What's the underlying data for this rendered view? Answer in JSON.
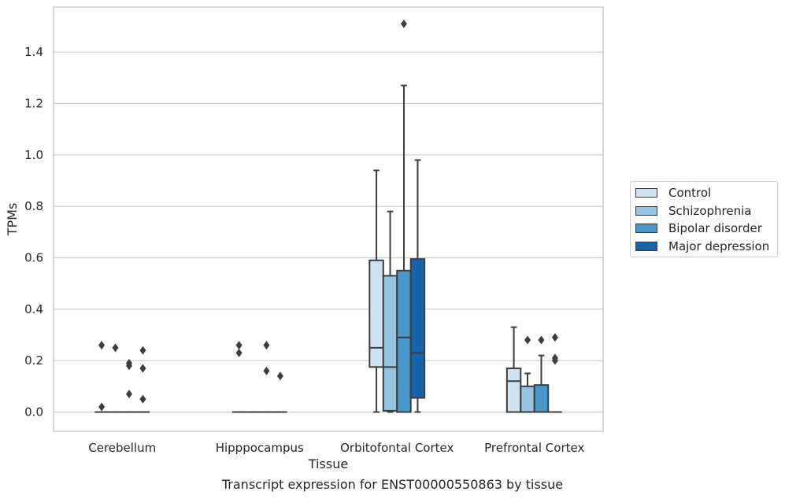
{
  "chart_data": {
    "type": "box",
    "title": "",
    "caption": "Transcript expression for ENST00000550863 by tissue",
    "xlabel": "Tissue",
    "ylabel": "TPMs",
    "ylim": [
      -0.075,
      1.575
    ],
    "yticks": [
      "0.0",
      "0.2",
      "0.4",
      "0.6",
      "0.8",
      "1.0",
      "1.2",
      "1.4"
    ],
    "grid": "horizontal",
    "legend_position": "right",
    "categories": [
      "Cerebellum",
      "Hipppocampus",
      "Orbitofontal Cortex",
      "Prefrontal Cortex"
    ],
    "series": [
      {
        "name": "Control",
        "color": "#d0e1f2",
        "boxes": [
          {
            "min": 0,
            "q1": 0,
            "median": 0,
            "q3": 0,
            "max": 0,
            "outliers": [
              0.26,
              0.02
            ]
          },
          {
            "min": 0,
            "q1": 0,
            "median": 0,
            "q3": 0,
            "max": 0,
            "outliers": [
              0.26,
              0.23
            ]
          },
          {
            "min": 0,
            "q1": 0.175,
            "median": 0.25,
            "q3": 0.59,
            "max": 0.94,
            "outliers": []
          },
          {
            "min": 0,
            "q1": 0,
            "median": 0.12,
            "q3": 0.17,
            "max": 0.33,
            "outliers": []
          }
        ]
      },
      {
        "name": "Schizophrenia",
        "color": "#94c4df",
        "boxes": [
          {
            "min": 0,
            "q1": 0,
            "median": 0,
            "q3": 0,
            "max": 0,
            "outliers": [
              0.25
            ]
          },
          {
            "min": 0,
            "q1": 0,
            "median": 0,
            "q3": 0,
            "max": 0,
            "outliers": []
          },
          {
            "min": 0,
            "q1": 0.005,
            "median": 0.175,
            "q3": 0.53,
            "max": 0.78,
            "outliers": []
          },
          {
            "min": 0,
            "q1": 0,
            "median": 0,
            "q3": 0.1,
            "max": 0.15,
            "outliers": [
              0.28
            ]
          }
        ]
      },
      {
        "name": "Bipolar disorder",
        "color": "#4a98c9",
        "boxes": [
          {
            "min": 0,
            "q1": 0,
            "median": 0,
            "q3": 0,
            "max": 0,
            "outliers": [
              0.19,
              0.18,
              0.07
            ]
          },
          {
            "min": 0,
            "q1": 0,
            "median": 0,
            "q3": 0,
            "max": 0,
            "outliers": [
              0.16,
              0.26
            ]
          },
          {
            "min": 0,
            "q1": 0,
            "median": 0.29,
            "q3": 0.55,
            "max": 1.27,
            "outliers": [
              1.51
            ]
          },
          {
            "min": 0,
            "q1": 0,
            "median": 0,
            "q3": 0.105,
            "max": 0.22,
            "outliers": [
              0.28
            ]
          }
        ]
      },
      {
        "name": "Major depression",
        "color": "#1764ab",
        "boxes": [
          {
            "min": 0,
            "q1": 0,
            "median": 0,
            "q3": 0,
            "max": 0,
            "outliers": [
              0.24,
              0.17,
              0.05
            ]
          },
          {
            "min": 0,
            "q1": 0,
            "median": 0,
            "q3": 0,
            "max": 0,
            "outliers": [
              0.14
            ]
          },
          {
            "min": 0,
            "q1": 0.055,
            "median": 0.23,
            "q3": 0.595,
            "max": 0.98,
            "outliers": []
          },
          {
            "min": 0,
            "q1": 0,
            "median": 0,
            "q3": 0,
            "max": 0,
            "outliers": [
              0.29,
              0.21,
              0.2
            ]
          }
        ]
      }
    ]
  }
}
